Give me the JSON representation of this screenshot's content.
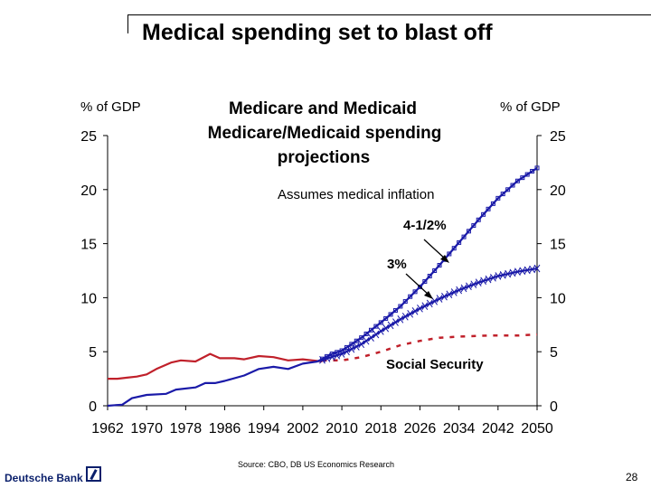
{
  "slide": {
    "title": "Medical spending set to blast off",
    "source": "Source: CBO, DB US Economics Research",
    "brand": "Deutsche Bank",
    "brand_logo_icon": "deutsche-bank-slash-square-icon",
    "page_number": "28"
  },
  "chart_data": {
    "type": "line",
    "title_lines": [
      "Medicare and Medicaid",
      "Medicare/Medicaid spending",
      "projections"
    ],
    "ylabel_left": "% of GDP",
    "ylabel_right": "% of GDP",
    "xlabel": "",
    "xlim": [
      1962,
      2050
    ],
    "ylim": [
      0,
      25
    ],
    "x_ticks": [
      1962,
      1970,
      1978,
      1986,
      1994,
      2002,
      2010,
      2018,
      2026,
      2034,
      2042,
      2050
    ],
    "y_ticks": [
      0,
      5,
      10,
      15,
      20,
      25
    ],
    "grid": false,
    "legend": "none (inline annotations)",
    "annotations": [
      {
        "id": "assumes",
        "text": "Assumes medical inflation",
        "bold": false
      },
      {
        "id": "rate45",
        "text": "4-1/2%",
        "bold": true,
        "points_to": "Medicare/Medicaid projection 4.5%"
      },
      {
        "id": "rate3",
        "text": "3%",
        "bold": true,
        "points_to": "Medicare/Medicaid projection 3%"
      },
      {
        "id": "ss",
        "text": "Social Security",
        "bold": true
      }
    ],
    "colors": {
      "social_security": "#c0202a",
      "medicare": "#1a1aa8"
    },
    "series": [
      {
        "name": "Social Security (historical)",
        "style": "solid",
        "color": "#c0202a",
        "points": [
          [
            1962,
            2.5
          ],
          [
            1964,
            2.5
          ],
          [
            1966,
            2.6
          ],
          [
            1968,
            2.7
          ],
          [
            1970,
            2.9
          ],
          [
            1972,
            3.4
          ],
          [
            1975,
            4.0
          ],
          [
            1977,
            4.2
          ],
          [
            1980,
            4.1
          ],
          [
            1983,
            4.8
          ],
          [
            1985,
            4.4
          ],
          [
            1988,
            4.4
          ],
          [
            1990,
            4.3
          ],
          [
            1993,
            4.6
          ],
          [
            1996,
            4.5
          ],
          [
            1999,
            4.2
          ],
          [
            2002,
            4.3
          ],
          [
            2004,
            4.2
          ],
          [
            2006,
            4.1
          ]
        ]
      },
      {
        "name": "Social Security (projection)",
        "style": "dashed",
        "color": "#c0202a",
        "points": [
          [
            2006,
            4.2
          ],
          [
            2010,
            4.2
          ],
          [
            2014,
            4.5
          ],
          [
            2018,
            5.0
          ],
          [
            2022,
            5.6
          ],
          [
            2026,
            6.0
          ],
          [
            2030,
            6.3
          ],
          [
            2034,
            6.4
          ],
          [
            2040,
            6.5
          ],
          [
            2046,
            6.5
          ],
          [
            2050,
            6.6
          ]
        ]
      },
      {
        "name": "Medicare/Medicaid (historical)",
        "style": "solid",
        "color": "#1a1aa8",
        "points": [
          [
            1962,
            0.0
          ],
          [
            1965,
            0.1
          ],
          [
            1967,
            0.7
          ],
          [
            1970,
            1.0
          ],
          [
            1974,
            1.1
          ],
          [
            1976,
            1.5
          ],
          [
            1980,
            1.7
          ],
          [
            1982,
            2.1
          ],
          [
            1984,
            2.1
          ],
          [
            1986,
            2.3
          ],
          [
            1990,
            2.8
          ],
          [
            1993,
            3.4
          ],
          [
            1996,
            3.6
          ],
          [
            1999,
            3.4
          ],
          [
            2002,
            3.9
          ],
          [
            2005,
            4.1
          ]
        ]
      },
      {
        "name": "Medicare/Medicaid projection, 4-1/2% medical inflation",
        "style": "solid-marker-square",
        "color": "#1a1aa8",
        "points": [
          [
            2005,
            4.1
          ],
          [
            2008,
            4.8
          ],
          [
            2010,
            5.1
          ],
          [
            2014,
            6.3
          ],
          [
            2018,
            7.7
          ],
          [
            2022,
            9.2
          ],
          [
            2026,
            11.0
          ],
          [
            2030,
            13.0
          ],
          [
            2034,
            15.1
          ],
          [
            2038,
            17.2
          ],
          [
            2042,
            19.2
          ],
          [
            2046,
            20.8
          ],
          [
            2050,
            22.0
          ]
        ]
      },
      {
        "name": "Medicare/Medicaid projection, 3% medical inflation",
        "style": "solid-marker-x",
        "color": "#1a1aa8",
        "points": [
          [
            2005,
            4.1
          ],
          [
            2010,
            4.8
          ],
          [
            2014,
            5.7
          ],
          [
            2018,
            6.9
          ],
          [
            2022,
            8.0
          ],
          [
            2026,
            9.0
          ],
          [
            2030,
            9.9
          ],
          [
            2034,
            10.7
          ],
          [
            2038,
            11.4
          ],
          [
            2042,
            12.0
          ],
          [
            2046,
            12.4
          ],
          [
            2050,
            12.7
          ]
        ]
      }
    ]
  }
}
